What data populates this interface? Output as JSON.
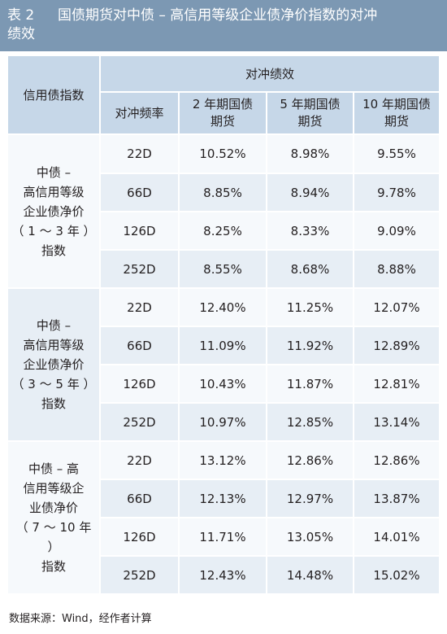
{
  "title": {
    "number": "表 2",
    "line1": "国债期货对中债 – 高信用等级企业债净价指数的对冲",
    "line2": "绩效"
  },
  "header": {
    "index_col": "信用债指数",
    "perf_group": "对冲绩效",
    "freq_col": "对冲频率",
    "col_2y": [
      "2 年期国债",
      "期货"
    ],
    "col_5y": [
      "5 年期国债",
      "期货"
    ],
    "col_10y": [
      "10 年期国债",
      "期货"
    ]
  },
  "groups": [
    {
      "index_lines": [
        "中债 –",
        "高信用等级",
        "企业债净价",
        "（ 1 ～ 3 年 ）",
        "指数"
      ],
      "rows": [
        {
          "freq": "22D",
          "y2": "10.52%",
          "y5": "8.98%",
          "y10": "9.55%"
        },
        {
          "freq": "66D",
          "y2": "8.85%",
          "y5": "8.94%",
          "y10": "9.78%"
        },
        {
          "freq": "126D",
          "y2": "8.25%",
          "y5": "8.33%",
          "y10": "9.09%"
        },
        {
          "freq": "252D",
          "y2": "8.55%",
          "y5": "8.68%",
          "y10": "8.88%"
        }
      ]
    },
    {
      "index_lines": [
        "中债 –",
        "高信用等级",
        "企业债净价",
        "（ 3 ～ 5 年 ）",
        "指数"
      ],
      "rows": [
        {
          "freq": "22D",
          "y2": "12.40%",
          "y5": "11.25%",
          "y10": "12.07%"
        },
        {
          "freq": "66D",
          "y2": "11.09%",
          "y5": "11.92%",
          "y10": "12.89%"
        },
        {
          "freq": "126D",
          "y2": "10.43%",
          "y5": "11.87%",
          "y10": "12.81%"
        },
        {
          "freq": "252D",
          "y2": "10.97%",
          "y5": "12.85%",
          "y10": "13.14%"
        }
      ]
    },
    {
      "index_lines": [
        "中债 – 高",
        "信用等级企",
        "业债净价",
        "（ 7 ～ 10 年 ）",
        "指数"
      ],
      "rows": [
        {
          "freq": "22D",
          "y2": "13.12%",
          "y5": "12.86%",
          "y10": "12.86%"
        },
        {
          "freq": "66D",
          "y2": "12.13%",
          "y5": "12.97%",
          "y10": "13.87%"
        },
        {
          "freq": "126D",
          "y2": "11.71%",
          "y5": "13.05%",
          "y10": "14.01%"
        },
        {
          "freq": "252D",
          "y2": "12.43%",
          "y5": "14.48%",
          "y10": "15.02%"
        }
      ]
    }
  ],
  "footnote": "数据来源：Wind，经作者计算"
}
